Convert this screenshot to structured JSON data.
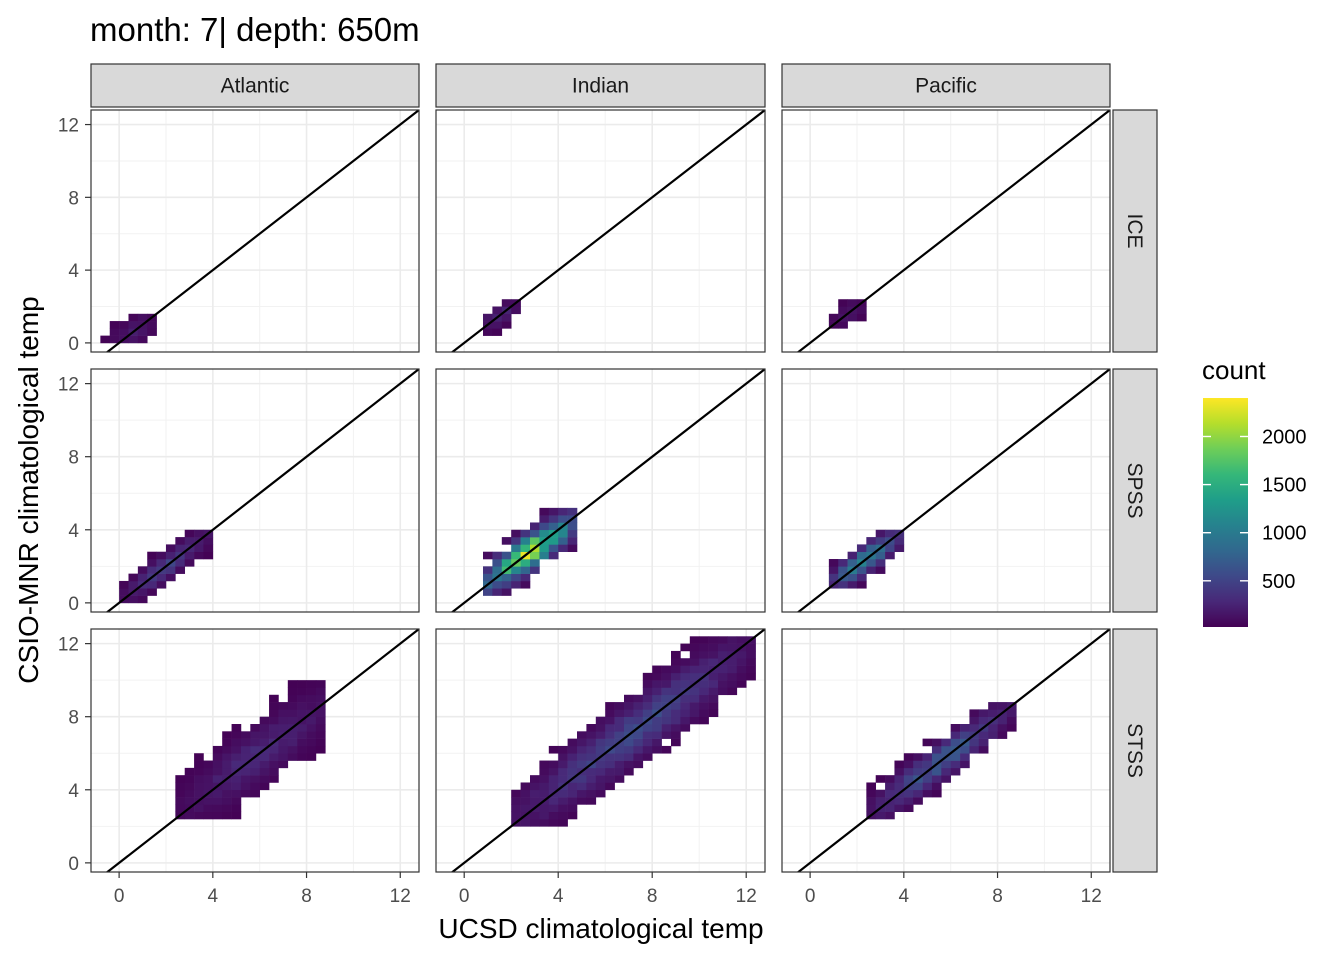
{
  "chart_data": {
    "type": "heatmap",
    "title": "month: 7| depth: 650m",
    "xlabel": "UCSD climatological temp",
    "ylabel": "CSIO-MNR climatological temp",
    "columns": [
      "Atlantic",
      "Indian",
      "Pacific"
    ],
    "rows": [
      "ICE",
      "SPSS",
      "STSS"
    ],
    "xlim": [
      -1.2,
      12.8
    ],
    "ylim": [
      -0.5,
      12.8
    ],
    "x_ticks": [
      "0",
      "4",
      "8",
      "12"
    ],
    "y_ticks": [
      "0",
      "4",
      "8",
      "12"
    ],
    "x_tick_values": [
      0,
      4,
      8,
      12
    ],
    "y_tick_values": [
      0,
      4,
      8,
      12
    ],
    "grid": true,
    "reference_line": {
      "slope": 1,
      "intercept": 0
    },
    "bin_width": 0.4,
    "colorbar": {
      "title": "count",
      "min": 20,
      "max": 2400,
      "ticks": [
        500,
        1000,
        1500,
        2000
      ],
      "tick_labels": [
        "500",
        "1000",
        "1500",
        "2000"
      ],
      "legend_position": "right",
      "colors": [
        "#440154",
        "#482878",
        "#3e4989",
        "#31688e",
        "#26828e",
        "#1f9e89",
        "#35b779",
        "#6ece58",
        "#b5de2b",
        "#fde725"
      ]
    },
    "panels": [
      {
        "column": "Atlantic",
        "row": "ICE",
        "x_range": [
          -0.8,
          1.6
        ],
        "y_range": [
          0.0,
          1.6
        ],
        "band": 0.9,
        "peak": 220
      },
      {
        "column": "Indian",
        "row": "ICE",
        "x_range": [
          0.8,
          2.4
        ],
        "y_range": [
          0.4,
          2.4
        ],
        "band": 0.6,
        "peak": 300
      },
      {
        "column": "Pacific",
        "row": "ICE",
        "x_range": [
          0.8,
          2.4
        ],
        "y_range": [
          0.8,
          2.4
        ],
        "band": 0.6,
        "peak": 200
      },
      {
        "column": "Atlantic",
        "row": "SPSS",
        "x_range": [
          0.0,
          4.0
        ],
        "y_range": [
          0.0,
          4.0
        ],
        "band": 0.7,
        "peak": 550
      },
      {
        "column": "Indian",
        "row": "SPSS",
        "x_range": [
          0.8,
          4.8
        ],
        "y_range": [
          0.4,
          5.2
        ],
        "band": 1.0,
        "peak": 2400
      },
      {
        "column": "Pacific",
        "row": "SPSS",
        "x_range": [
          0.8,
          4.0
        ],
        "y_range": [
          0.8,
          4.0
        ],
        "band": 0.8,
        "peak": 1300
      },
      {
        "column": "Atlantic",
        "row": "STSS",
        "x_range": [
          2.4,
          8.8
        ],
        "y_range": [
          2.4,
          10.0
        ],
        "band": 1.5,
        "peak": 350
      },
      {
        "column": "Indian",
        "row": "STSS",
        "x_range": [
          2.0,
          12.4
        ],
        "y_range": [
          2.0,
          12.4
        ],
        "band": 1.6,
        "peak": 650
      },
      {
        "column": "Pacific",
        "row": "STSS",
        "x_range": [
          2.4,
          8.8
        ],
        "y_range": [
          2.4,
          8.8
        ],
        "band": 1.0,
        "peak": 800
      }
    ]
  }
}
